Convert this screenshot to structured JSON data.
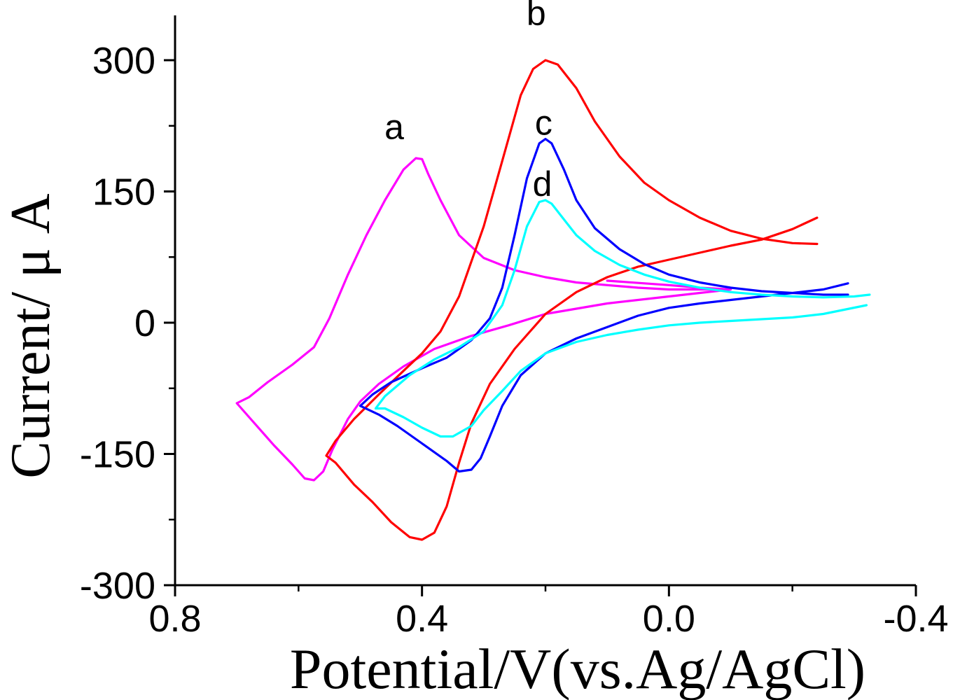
{
  "chart_data": {
    "type": "line",
    "title": "",
    "xlabel": "Potential/V(vs.Ag/AgCl)",
    "ylabel": "Current/ μ A",
    "xlim": [
      0.8,
      -0.4
    ],
    "ylim": [
      -300,
      300
    ],
    "x_ticks": [
      0.8,
      0.4,
      0.0,
      -0.4
    ],
    "x_tick_labels": [
      "0.8",
      "0.4",
      "0.0",
      "-0.4"
    ],
    "y_ticks": [
      300,
      150,
      0,
      -150,
      -300
    ],
    "y_tick_labels": [
      "300",
      "150",
      "0",
      "-150",
      "-300"
    ],
    "grid": false,
    "legend": "none",
    "series": [
      {
        "name": "a",
        "color": "#ff00ff",
        "points": [
          [
            0.1,
            48
          ],
          [
            0.0,
            43
          ],
          [
            -0.05,
            40
          ],
          [
            -0.1,
            38
          ],
          [
            -0.05,
            38
          ],
          [
            0.0,
            38
          ],
          [
            0.05,
            40
          ],
          [
            0.1,
            43
          ],
          [
            0.15,
            46
          ],
          [
            0.2,
            52
          ],
          [
            0.25,
            60
          ],
          [
            0.3,
            74
          ],
          [
            0.34,
            100
          ],
          [
            0.37,
            140
          ],
          [
            0.39,
            170
          ],
          [
            0.4,
            187
          ],
          [
            0.41,
            188
          ],
          [
            0.43,
            175
          ],
          [
            0.46,
            140
          ],
          [
            0.49,
            100
          ],
          [
            0.52,
            55
          ],
          [
            0.55,
            5
          ],
          [
            0.575,
            -28
          ],
          [
            0.61,
            -48
          ],
          [
            0.65,
            -68
          ],
          [
            0.68,
            -85
          ],
          [
            0.7,
            -92
          ],
          [
            0.68,
            -108
          ],
          [
            0.64,
            -140
          ],
          [
            0.61,
            -162
          ],
          [
            0.59,
            -178
          ],
          [
            0.575,
            -180
          ],
          [
            0.56,
            -170
          ],
          [
            0.545,
            -145
          ],
          [
            0.52,
            -110
          ],
          [
            0.5,
            -90
          ],
          [
            0.47,
            -70
          ],
          [
            0.43,
            -50
          ],
          [
            0.38,
            -30
          ],
          [
            0.32,
            -15
          ],
          [
            0.26,
            -3
          ],
          [
            0.2,
            10
          ],
          [
            0.1,
            22
          ],
          [
            0.0,
            30
          ],
          [
            -0.05,
            34
          ],
          [
            -0.1,
            38
          ]
        ]
      },
      {
        "name": "b",
        "color": "#ff0000",
        "points": [
          [
            -0.24,
            120
          ],
          [
            -0.2,
            107
          ],
          [
            -0.15,
            95
          ],
          [
            -0.1,
            88
          ],
          [
            -0.05,
            80
          ],
          [
            0.0,
            72
          ],
          [
            0.05,
            64
          ],
          [
            0.1,
            52
          ],
          [
            0.15,
            35
          ],
          [
            0.2,
            10
          ],
          [
            0.25,
            -30
          ],
          [
            0.29,
            -70
          ],
          [
            0.32,
            -115
          ],
          [
            0.34,
            -160
          ],
          [
            0.36,
            -210
          ],
          [
            0.38,
            -240
          ],
          [
            0.4,
            -248
          ],
          [
            0.42,
            -245
          ],
          [
            0.45,
            -228
          ],
          [
            0.48,
            -205
          ],
          [
            0.51,
            -185
          ],
          [
            0.54,
            -160
          ],
          [
            0.555,
            -152
          ],
          [
            0.54,
            -135
          ],
          [
            0.51,
            -110
          ],
          [
            0.47,
            -82
          ],
          [
            0.43,
            -55
          ],
          [
            0.4,
            -35
          ],
          [
            0.37,
            -10
          ],
          [
            0.34,
            30
          ],
          [
            0.32,
            70
          ],
          [
            0.3,
            110
          ],
          [
            0.28,
            160
          ],
          [
            0.26,
            210
          ],
          [
            0.24,
            260
          ],
          [
            0.22,
            290
          ],
          [
            0.2,
            300
          ],
          [
            0.18,
            295
          ],
          [
            0.15,
            268
          ],
          [
            0.12,
            230
          ],
          [
            0.08,
            190
          ],
          [
            0.04,
            160
          ],
          [
            0.0,
            140
          ],
          [
            -0.05,
            120
          ],
          [
            -0.1,
            105
          ],
          [
            -0.15,
            96
          ],
          [
            -0.2,
            91
          ],
          [
            -0.24,
            90
          ]
        ]
      },
      {
        "name": "c",
        "color": "#0000ff",
        "points": [
          [
            -0.29,
            45
          ],
          [
            -0.25,
            38
          ],
          [
            -0.2,
            34
          ],
          [
            -0.15,
            30
          ],
          [
            -0.1,
            26
          ],
          [
            -0.05,
            22
          ],
          [
            0.0,
            17
          ],
          [
            0.05,
            8
          ],
          [
            0.1,
            -5
          ],
          [
            0.15,
            -18
          ],
          [
            0.2,
            -35
          ],
          [
            0.24,
            -60
          ],
          [
            0.27,
            -95
          ],
          [
            0.29,
            -130
          ],
          [
            0.305,
            -155
          ],
          [
            0.32,
            -168
          ],
          [
            0.34,
            -170
          ],
          [
            0.36,
            -158
          ],
          [
            0.4,
            -138
          ],
          [
            0.44,
            -118
          ],
          [
            0.47,
            -105
          ],
          [
            0.5,
            -95
          ],
          [
            0.48,
            -82
          ],
          [
            0.45,
            -68
          ],
          [
            0.4,
            -52
          ],
          [
            0.36,
            -40
          ],
          [
            0.32,
            -20
          ],
          [
            0.29,
            5
          ],
          [
            0.27,
            40
          ],
          [
            0.25,
            100
          ],
          [
            0.23,
            165
          ],
          [
            0.21,
            205
          ],
          [
            0.2,
            210
          ],
          [
            0.19,
            205
          ],
          [
            0.17,
            175
          ],
          [
            0.15,
            140
          ],
          [
            0.12,
            108
          ],
          [
            0.08,
            84
          ],
          [
            0.04,
            67
          ],
          [
            0.0,
            55
          ],
          [
            -0.05,
            46
          ],
          [
            -0.1,
            40
          ],
          [
            -0.15,
            36
          ],
          [
            -0.2,
            34
          ],
          [
            -0.25,
            32
          ],
          [
            -0.29,
            32
          ]
        ]
      },
      {
        "name": "d",
        "color": "#00ffff",
        "points": [
          [
            -0.32,
            20
          ],
          [
            -0.25,
            10
          ],
          [
            -0.2,
            6
          ],
          [
            -0.15,
            4
          ],
          [
            -0.1,
            2
          ],
          [
            -0.05,
            0
          ],
          [
            0.0,
            -3
          ],
          [
            0.05,
            -8
          ],
          [
            0.1,
            -14
          ],
          [
            0.15,
            -22
          ],
          [
            0.2,
            -35
          ],
          [
            0.24,
            -55
          ],
          [
            0.27,
            -78
          ],
          [
            0.3,
            -100
          ],
          [
            0.32,
            -118
          ],
          [
            0.35,
            -130
          ],
          [
            0.37,
            -130
          ],
          [
            0.4,
            -120
          ],
          [
            0.43,
            -108
          ],
          [
            0.46,
            -98
          ],
          [
            0.475,
            -98
          ],
          [
            0.46,
            -84
          ],
          [
            0.42,
            -60
          ],
          [
            0.38,
            -42
          ],
          [
            0.34,
            -28
          ],
          [
            0.3,
            -10
          ],
          [
            0.27,
            20
          ],
          [
            0.25,
            60
          ],
          [
            0.23,
            110
          ],
          [
            0.21,
            138
          ],
          [
            0.2,
            140
          ],
          [
            0.19,
            136
          ],
          [
            0.17,
            118
          ],
          [
            0.15,
            100
          ],
          [
            0.12,
            82
          ],
          [
            0.08,
            66
          ],
          [
            0.04,
            55
          ],
          [
            0.0,
            47
          ],
          [
            -0.05,
            40
          ],
          [
            -0.1,
            35
          ],
          [
            -0.15,
            32
          ],
          [
            -0.2,
            30
          ],
          [
            -0.25,
            29
          ],
          [
            -0.3,
            30
          ],
          [
            -0.325,
            32
          ]
        ]
      }
    ],
    "annotations": [
      {
        "text": "a",
        "x": 0.445,
        "y": 210
      },
      {
        "text": "b",
        "x": 0.215,
        "y": 340
      },
      {
        "text": "c",
        "x": 0.203,
        "y": 215
      },
      {
        "text": "d",
        "x": 0.205,
        "y": 145
      }
    ]
  }
}
